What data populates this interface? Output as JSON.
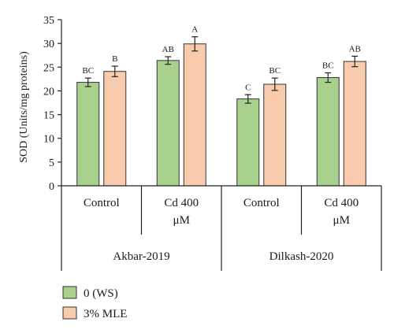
{
  "chart_data": {
    "type": "bar",
    "title": "",
    "ylabel": "SOD (Units/mg proteins)",
    "ylim": [
      0,
      35
    ],
    "yticks": [
      0,
      5,
      10,
      15,
      20,
      25,
      30,
      35
    ],
    "groups": [
      {
        "label": "Akbar-2019",
        "categories": [
          {
            "label": [
              "Control"
            ],
            "values": [
              21.8,
              24.1
            ],
            "errors": [
              0.9,
              1.1
            ],
            "letters": [
              "BC",
              "B"
            ]
          },
          {
            "label": [
              "Cd 400",
              "μM"
            ],
            "values": [
              26.4,
              29.9
            ],
            "errors": [
              0.8,
              1.5
            ],
            "letters": [
              "AB",
              "A"
            ]
          }
        ]
      },
      {
        "label": "Dilkash-2020",
        "categories": [
          {
            "label": [
              "Control"
            ],
            "values": [
              18.3,
              21.4
            ],
            "errors": [
              0.9,
              1.3
            ],
            "letters": [
              "C",
              "BC"
            ]
          },
          {
            "label": [
              "Cd 400",
              "μM"
            ],
            "values": [
              22.8,
              26.2
            ],
            "errors": [
              1.0,
              1.1
            ],
            "letters": [
              "BC",
              "AB"
            ]
          }
        ]
      }
    ],
    "series": [
      {
        "name": "0 (WS)",
        "color": "#a9d18e"
      },
      {
        "name": "3% MLE",
        "color": "#f8cbad"
      }
    ],
    "grid": false,
    "legend_position": "bottom-left"
  }
}
